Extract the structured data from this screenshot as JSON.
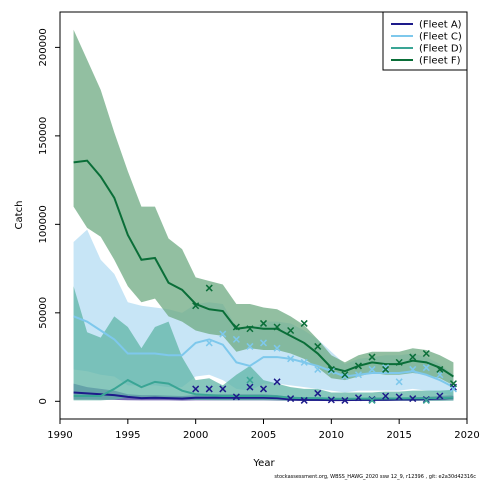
{
  "chart_data": {
    "type": "line",
    "xlabel": "Year",
    "ylabel": "Catch",
    "xlim": [
      1990,
      2020
    ],
    "ylim": [
      -10000,
      220000
    ],
    "x_ticks": [
      1990,
      1995,
      2000,
      2005,
      2010,
      2015,
      2020
    ],
    "y_ticks": [
      0,
      50000,
      100000,
      150000,
      200000
    ],
    "grid": false,
    "legend_position": "top-right",
    "footer": "stockassessment.org, WBSS_HAWG_2020 ssw 12_9, r12396 , git: e2a30d42316c",
    "series": [
      {
        "name": "(Fleet A)",
        "color": "#1d1a8a",
        "fill": "#4b3c9c",
        "x": [
          1991,
          1992,
          1993,
          1994,
          1995,
          1996,
          1997,
          1998,
          1999,
          2000,
          2001,
          2002,
          2003,
          2004,
          2005,
          2006,
          2007,
          2008,
          2009,
          2010,
          2011,
          2012,
          2013,
          2014,
          2015,
          2016,
          2017,
          2018,
          2019
        ],
        "estimate": [
          5000,
          4500,
          4000,
          3500,
          2500,
          1800,
          2000,
          1800,
          1600,
          2000,
          2000,
          2000,
          2000,
          2000,
          2000,
          1800,
          1000,
          800,
          800,
          700,
          700,
          800,
          800,
          900,
          1000,
          1000,
          1200,
          1500,
          2000
        ],
        "lower": [
          1000,
          1000,
          900,
          800,
          600,
          500,
          500,
          500,
          400,
          500,
          500,
          500,
          500,
          500,
          500,
          400,
          300,
          200,
          200,
          200,
          200,
          200,
          200,
          200,
          300,
          300,
          300,
          400,
          500
        ],
        "upper": [
          10000,
          8000,
          7000,
          6000,
          4000,
          3500,
          3500,
          3200,
          3000,
          3500,
          4000,
          4000,
          4000,
          4000,
          4000,
          3500,
          2500,
          2000,
          2000,
          1500,
          1500,
          1800,
          1800,
          2000,
          2200,
          2200,
          2500,
          3000,
          3500
        ],
        "observed": [
          null,
          null,
          null,
          null,
          null,
          null,
          null,
          null,
          null,
          7000,
          7000,
          7000,
          2500,
          8000,
          7000,
          11000,
          1500,
          500,
          4500,
          800,
          500,
          2000,
          1000,
          3000,
          2500,
          1500,
          1000,
          3000,
          8000
        ]
      },
      {
        "name": "(Fleet C)",
        "color": "#7ec8ec",
        "fill": "#bde0f5",
        "x": [
          1991,
          1992,
          1993,
          1994,
          1995,
          1996,
          1997,
          1998,
          1999,
          2000,
          2001,
          2002,
          2003,
          2004,
          2005,
          2006,
          2007,
          2008,
          2009,
          2010,
          2011,
          2012,
          2013,
          2014,
          2015,
          2016,
          2017,
          2018,
          2019
        ],
        "estimate": [
          48000,
          45000,
          40000,
          35000,
          27000,
          27000,
          27000,
          26000,
          26000,
          33000,
          35000,
          32000,
          22000,
          20000,
          25000,
          25000,
          24000,
          22000,
          20000,
          17000,
          14000,
          15000,
          16000,
          16000,
          16000,
          17000,
          15000,
          12000,
          8000
        ],
        "lower": [
          18000,
          17000,
          15000,
          14000,
          9000,
          9000,
          9000,
          8000,
          8000,
          14000,
          15000,
          12000,
          7000,
          6000,
          10000,
          10000,
          9000,
          8000,
          7000,
          6000,
          5000,
          6000,
          6000,
          6000,
          6000,
          7000,
          6000,
          5000,
          3000
        ],
        "upper": [
          90000,
          97000,
          80000,
          72000,
          56000,
          54000,
          53000,
          52000,
          50000,
          55000,
          56000,
          55000,
          42000,
          40000,
          45000,
          45000,
          44000,
          40000,
          35000,
          28000,
          21000,
          24000,
          25000,
          26000,
          26000,
          27000,
          25000,
          21000,
          15000
        ],
        "observed": [
          null,
          null,
          null,
          null,
          null,
          null,
          null,
          null,
          null,
          null,
          33000,
          38000,
          35000,
          31000,
          33000,
          30000,
          24000,
          22000,
          18000,
          17000,
          14000,
          15000,
          18000,
          19000,
          11000,
          18000,
          19000,
          15000,
          7000
        ]
      },
      {
        "name": "(Fleet D)",
        "color": "#3aa595",
        "fill": "#5fb4a6",
        "x": [
          1991,
          1992,
          1993,
          1994,
          1995,
          1996,
          1997,
          1998,
          1999,
          2000,
          2001,
          2002,
          2003,
          2004,
          2005,
          2006,
          2007,
          2008,
          2009,
          2010,
          2011,
          2012,
          2013,
          2014,
          2015,
          2016,
          2017,
          2018,
          2019
        ],
        "estimate": [
          3000,
          3000,
          3000,
          7000,
          12000,
          8000,
          11000,
          10000,
          6000,
          4000,
          3500,
          3000,
          3000,
          3000,
          3000,
          2800,
          2000,
          1800,
          1800,
          1500,
          1400,
          1500,
          1500,
          1600,
          1600,
          1700,
          1700,
          1800,
          2000
        ],
        "lower": [
          500,
          500,
          500,
          1000,
          2000,
          1500,
          2000,
          2000,
          1200,
          800,
          700,
          600,
          600,
          600,
          600,
          500,
          400,
          400,
          400,
          300,
          300,
          300,
          300,
          300,
          300,
          300,
          300,
          300,
          400
        ],
        "upper": [
          65000,
          39000,
          36000,
          48000,
          42000,
          30000,
          42000,
          45000,
          25000,
          12000,
          13000,
          9000,
          15000,
          20000,
          12000,
          10000,
          8000,
          7000,
          7000,
          5000,
          5000,
          5000,
          5000,
          5500,
          5500,
          6000,
          6000,
          6000,
          6500
        ],
        "observed": [
          null,
          null,
          null,
          null,
          null,
          null,
          null,
          null,
          null,
          null,
          null,
          null,
          null,
          12000,
          null,
          null,
          null,
          null,
          null,
          null,
          null,
          null,
          500,
          null,
          null,
          null,
          500,
          null,
          null
        ]
      },
      {
        "name": "(Fleet F)",
        "color": "#0a6e38",
        "fill": "#6eaa82",
        "x": [
          1991,
          1992,
          1993,
          1994,
          1995,
          1996,
          1997,
          1998,
          1999,
          2000,
          2001,
          2002,
          2003,
          2004,
          2005,
          2006,
          2007,
          2008,
          2009,
          2010,
          2011,
          2012,
          2013,
          2014,
          2015,
          2016,
          2017,
          2018,
          2019
        ],
        "estimate": [
          135000,
          136000,
          127000,
          115000,
          94000,
          80000,
          81000,
          67000,
          63000,
          55000,
          52000,
          51000,
          41000,
          42000,
          41000,
          41000,
          37000,
          33000,
          27000,
          19000,
          17000,
          20000,
          22000,
          21000,
          21000,
          23000,
          22000,
          19000,
          14000
        ],
        "lower": [
          110000,
          98000,
          93000,
          80000,
          65000,
          56000,
          58000,
          48000,
          45000,
          40000,
          38000,
          37000,
          28000,
          30000,
          29000,
          29000,
          27000,
          24000,
          19000,
          13000,
          12000,
          14000,
          16000,
          15000,
          15000,
          16000,
          15000,
          13000,
          9000
        ],
        "upper": [
          210000,
          193000,
          176000,
          152000,
          130000,
          110000,
          110000,
          92000,
          86000,
          70000,
          68000,
          66000,
          55000,
          55000,
          53000,
          52000,
          48000,
          43000,
          35000,
          26000,
          22000,
          26000,
          28000,
          28000,
          28000,
          30000,
          29000,
          26000,
          22000
        ],
        "observed": [
          null,
          null,
          null,
          null,
          null,
          null,
          null,
          null,
          null,
          54000,
          64000,
          null,
          42000,
          41000,
          44000,
          42000,
          40000,
          44000,
          31000,
          18000,
          15000,
          20000,
          25000,
          18000,
          22000,
          25000,
          27000,
          18000,
          10000
        ]
      }
    ]
  }
}
